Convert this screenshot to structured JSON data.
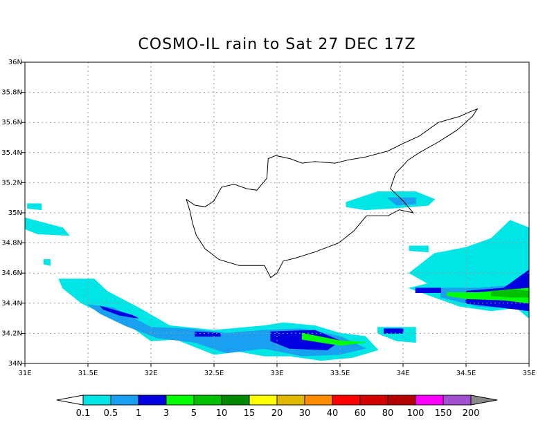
{
  "title": "COSMO-IL rain to Sat 27 DEC 17Z",
  "axes": {
    "lon_ticks": [
      "31E",
      "31.5E",
      "32E",
      "32.5E",
      "33E",
      "33.5E",
      "34E",
      "34.5E",
      "35E"
    ],
    "lat_ticks": [
      "34N",
      "34.2N",
      "34.4N",
      "34.6N",
      "34.8N",
      "35N",
      "35.2N",
      "35.4N",
      "35.6N",
      "35.8N",
      "36N"
    ],
    "lon_range": [
      31,
      35
    ],
    "lat_range": [
      34,
      36
    ],
    "grid": "dotted"
  },
  "colorbar": {
    "labels": [
      "0.1",
      "0.5",
      "1",
      "3",
      "5",
      "10",
      "15",
      "20",
      "30",
      "40",
      "60",
      "80",
      "100",
      "150",
      "200"
    ],
    "colors": [
      "#00e5e5",
      "#1aa0f0",
      "#0000e0",
      "#00ff00",
      "#00c000",
      "#008a00",
      "#ffff00",
      "#e0b800",
      "#ff8c00",
      "#ff0000",
      "#d40000",
      "#b40000",
      "#ff00ff",
      "#a050d0"
    ],
    "under_color": "#ffffff",
    "over_color": "#888888"
  },
  "precip_patches": [
    {
      "level": "0.1",
      "color": "#00e5e5",
      "pts": [
        [
          30.98,
          34.97
        ],
        [
          31.3,
          34.9
        ],
        [
          31.35,
          34.85
        ],
        [
          31.1,
          34.86
        ],
        [
          30.98,
          34.9
        ]
      ]
    },
    {
      "level": "0.1",
      "color": "#00e5e5",
      "pts": [
        [
          31.02,
          35.06
        ],
        [
          31.13,
          35.06
        ],
        [
          31.13,
          35.02
        ],
        [
          31.02,
          35.03
        ]
      ]
    },
    {
      "level": "0.1",
      "color": "#00e5e5",
      "pts": [
        [
          31.15,
          34.69
        ],
        [
          31.2,
          34.69
        ],
        [
          31.2,
          34.65
        ],
        [
          31.15,
          34.66
        ]
      ]
    },
    {
      "level": "0.1",
      "color": "#00e5e5",
      "pts": [
        [
          31.27,
          34.56
        ],
        [
          31.55,
          34.56
        ],
        [
          31.65,
          34.48
        ],
        [
          31.9,
          34.37
        ],
        [
          32.15,
          34.25
        ],
        [
          32.5,
          34.22
        ],
        [
          32.9,
          34.25
        ],
        [
          33.05,
          34.27
        ],
        [
          33.3,
          34.25
        ],
        [
          33.5,
          34.2
        ],
        [
          33.7,
          34.18
        ],
        [
          33.8,
          34.09
        ],
        [
          33.6,
          34.04
        ],
        [
          33.35,
          34.02
        ],
        [
          33.1,
          34.05
        ],
        [
          32.9,
          34.05
        ],
        [
          32.7,
          34.08
        ],
        [
          32.5,
          34.06
        ],
        [
          32.2,
          34.16
        ],
        [
          32.0,
          34.15
        ],
        [
          31.85,
          34.24
        ],
        [
          31.6,
          34.34
        ],
        [
          31.45,
          34.4
        ],
        [
          31.3,
          34.5
        ]
      ]
    },
    {
      "level": "0.1",
      "color": "#00e5e5",
      "pts": [
        [
          33.8,
          34.24
        ],
        [
          34.1,
          34.24
        ],
        [
          34.1,
          34.14
        ],
        [
          33.95,
          34.15
        ],
        [
          33.8,
          34.2
        ]
      ]
    },
    {
      "level": "0.1",
      "color": "#00e5e5",
      "pts": [
        [
          33.55,
          35.07
        ],
        [
          33.8,
          35.14
        ],
        [
          34.1,
          35.14
        ],
        [
          34.25,
          35.09
        ],
        [
          34.2,
          35.05
        ],
        [
          33.9,
          35.03
        ],
        [
          33.7,
          35.02
        ],
        [
          33.55,
          35.04
        ]
      ]
    },
    {
      "level": "0.1",
      "color": "#00e5e5",
      "pts": [
        [
          34.05,
          34.6
        ],
        [
          34.25,
          34.73
        ],
        [
          34.5,
          34.77
        ],
        [
          34.7,
          34.83
        ],
        [
          34.85,
          34.95
        ],
        [
          35.0,
          34.9
        ],
        [
          35.0,
          34.3
        ],
        [
          34.9,
          34.37
        ],
        [
          34.7,
          34.35
        ],
        [
          34.45,
          34.38
        ],
        [
          34.25,
          34.44
        ],
        [
          34.05,
          34.5
        ],
        [
          34.2,
          34.53
        ]
      ]
    },
    {
      "level": "0.1",
      "color": "#00e5e5",
      "pts": [
        [
          34.05,
          34.78
        ],
        [
          34.2,
          34.78
        ],
        [
          34.2,
          34.74
        ],
        [
          34.05,
          34.75
        ]
      ]
    },
    {
      "level": "0.5",
      "color": "#1aa0f0",
      "pts": [
        [
          31.5,
          34.39
        ],
        [
          31.7,
          34.37
        ],
        [
          32.0,
          34.24
        ],
        [
          32.3,
          34.23
        ],
        [
          32.6,
          34.2
        ],
        [
          32.9,
          34.22
        ],
        [
          33.2,
          34.23
        ],
        [
          33.5,
          34.18
        ],
        [
          33.7,
          34.1
        ],
        [
          33.5,
          34.06
        ],
        [
          33.2,
          34.05
        ],
        [
          32.9,
          34.1
        ],
        [
          32.6,
          34.07
        ],
        [
          32.35,
          34.14
        ],
        [
          32.05,
          34.17
        ],
        [
          31.8,
          34.25
        ],
        [
          31.6,
          34.33
        ]
      ]
    },
    {
      "level": "0.5",
      "color": "#1aa0f0",
      "pts": [
        [
          33.88,
          35.1
        ],
        [
          34.1,
          35.1
        ],
        [
          34.1,
          35.06
        ],
        [
          33.95,
          35.05
        ]
      ]
    },
    {
      "level": "0.5",
      "color": "#1aa0f0",
      "pts": [
        [
          34.3,
          34.5
        ],
        [
          34.6,
          34.5
        ],
        [
          34.9,
          34.52
        ],
        [
          35.0,
          34.54
        ],
        [
          35.0,
          34.35
        ],
        [
          34.8,
          34.37
        ],
        [
          34.6,
          34.38
        ],
        [
          34.3,
          34.44
        ]
      ]
    },
    {
      "level": "1",
      "color": "#0000e0",
      "pts": [
        [
          31.6,
          34.38
        ],
        [
          31.85,
          34.32
        ],
        [
          31.9,
          34.3
        ],
        [
          31.75,
          34.32
        ],
        [
          31.62,
          34.36
        ]
      ]
    },
    {
      "level": "1",
      "color": "#0000e0",
      "pts": [
        [
          32.35,
          34.21
        ],
        [
          32.55,
          34.2
        ],
        [
          32.55,
          34.18
        ],
        [
          32.35,
          34.18
        ]
      ]
    },
    {
      "level": "1",
      "color": "#0000e0",
      "pts": [
        [
          32.95,
          34.21
        ],
        [
          33.3,
          34.22
        ],
        [
          33.5,
          34.15
        ],
        [
          33.4,
          34.09
        ],
        [
          33.1,
          34.1
        ],
        [
          32.95,
          34.15
        ]
      ]
    },
    {
      "level": "1",
      "color": "#0000e0",
      "pts": [
        [
          33.85,
          34.23
        ],
        [
          34.0,
          34.23
        ],
        [
          34.0,
          34.2
        ],
        [
          33.85,
          34.2
        ]
      ]
    },
    {
      "level": "1",
      "color": "#0000e0",
      "pts": [
        [
          34.1,
          34.5
        ],
        [
          34.3,
          34.5
        ],
        [
          34.3,
          34.47
        ],
        [
          34.1,
          34.47
        ]
      ]
    },
    {
      "level": "1",
      "color": "#0000e0",
      "pts": [
        [
          34.5,
          34.48
        ],
        [
          34.8,
          34.5
        ],
        [
          35.0,
          34.62
        ],
        [
          35.0,
          34.35
        ],
        [
          34.8,
          34.37
        ],
        [
          34.5,
          34.4
        ]
      ]
    },
    {
      "level": "3",
      "color": "#00ff00",
      "pts": [
        [
          33.2,
          34.2
        ],
        [
          33.5,
          34.15
        ],
        [
          33.7,
          34.14
        ],
        [
          33.5,
          34.12
        ],
        [
          33.2,
          34.16
        ]
      ]
    },
    {
      "level": "3",
      "color": "#00ff00",
      "pts": [
        [
          34.35,
          34.47
        ],
        [
          34.6,
          34.47
        ],
        [
          34.85,
          34.49
        ],
        [
          35.0,
          34.5
        ],
        [
          35.0,
          34.4
        ],
        [
          34.8,
          34.42
        ],
        [
          34.5,
          34.43
        ],
        [
          34.35,
          34.45
        ]
      ]
    },
    {
      "level": "5",
      "color": "#00c000",
      "pts": [
        [
          34.7,
          34.48
        ],
        [
          34.9,
          34.49
        ],
        [
          35.0,
          34.48
        ],
        [
          35.0,
          34.44
        ],
        [
          34.85,
          34.44
        ],
        [
          34.7,
          34.45
        ]
      ]
    }
  ],
  "coastline": [
    [
      32.28,
      35.09
    ],
    [
      32.35,
      35.05
    ],
    [
      32.43,
      35.04
    ],
    [
      32.5,
      35.08
    ],
    [
      32.56,
      35.17
    ],
    [
      32.66,
      35.19
    ],
    [
      32.76,
      35.16
    ],
    [
      32.84,
      35.15
    ],
    [
      32.92,
      35.23
    ],
    [
      32.93,
      35.36
    ],
    [
      32.99,
      35.38
    ],
    [
      33.1,
      35.36
    ],
    [
      33.2,
      35.33
    ],
    [
      33.3,
      35.34
    ],
    [
      33.46,
      35.33
    ],
    [
      33.56,
      35.35
    ],
    [
      33.7,
      35.37
    ],
    [
      33.88,
      35.41
    ],
    [
      34.0,
      35.46
    ],
    [
      34.13,
      35.51
    ],
    [
      34.28,
      35.6
    ],
    [
      34.45,
      35.64
    ],
    [
      34.53,
      35.67
    ],
    [
      34.59,
      35.69
    ],
    [
      34.55,
      35.64
    ],
    [
      34.43,
      35.55
    ],
    [
      34.28,
      35.47
    ],
    [
      34.13,
      35.4
    ],
    [
      34.04,
      35.35
    ],
    [
      33.94,
      35.26
    ],
    [
      33.9,
      35.16
    ],
    [
      34.0,
      35.08
    ],
    [
      34.08,
      35.0
    ],
    [
      33.97,
      35.02
    ],
    [
      33.88,
      34.98
    ],
    [
      33.71,
      34.98
    ],
    [
      33.61,
      34.88
    ],
    [
      33.49,
      34.8
    ],
    [
      33.3,
      34.74
    ],
    [
      33.15,
      34.7
    ],
    [
      33.05,
      34.68
    ],
    [
      33.0,
      34.6
    ],
    [
      32.95,
      34.57
    ],
    [
      32.9,
      34.65
    ],
    [
      32.7,
      34.65
    ],
    [
      32.54,
      34.69
    ],
    [
      32.43,
      34.76
    ],
    [
      32.36,
      34.85
    ],
    [
      32.33,
      34.93
    ],
    [
      32.31,
      35.01
    ],
    [
      32.28,
      35.09
    ]
  ]
}
